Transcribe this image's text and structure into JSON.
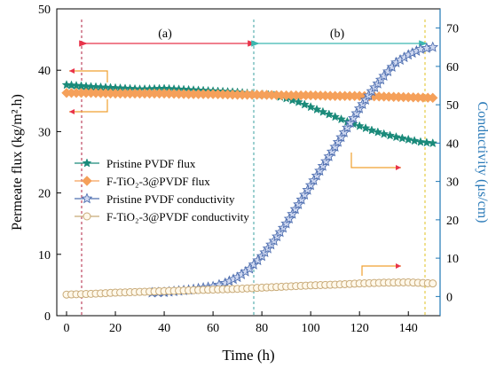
{
  "chart_data": {
    "type": "line",
    "xlabel": "Time (h)",
    "ylabel_left": "Permeate flux (kg/m².h)",
    "ylabel_right": "Conductivity (μs/cm)",
    "xlim": [
      -4,
      153
    ],
    "ylim_left": [
      0,
      50
    ],
    "ylim_right": [
      -5,
      75
    ],
    "xticks": [
      "0",
      "20",
      "40",
      "60",
      "80",
      "100",
      "120",
      "140"
    ],
    "yticks_left": [
      "0",
      "10",
      "20",
      "30",
      "40",
      "50"
    ],
    "yticks_right": [
      "0",
      "10",
      "20",
      "30",
      "40",
      "50",
      "60",
      "70"
    ],
    "colors": {
      "left_axis": "#000000",
      "right_axis": "#1f77b4",
      "right_axis_label": "#2a7ab8",
      "red_arrow": "#e8334a",
      "teal_arrow": "#3cb8b0",
      "orange_arrow": "#f0a030"
    },
    "phase_labels": [
      "(a)",
      "(b)"
    ],
    "series": [
      {
        "name": "Pristine PVDF flux",
        "axis": "left",
        "color": "#1a8a7a",
        "marker": "star",
        "x": [
          0,
          10,
          20,
          30,
          40,
          50,
          60,
          70,
          78,
          85,
          90,
          95,
          100,
          105,
          110,
          115,
          120,
          125,
          130,
          135,
          140,
          145,
          150
        ],
        "y": [
          37.6,
          37.3,
          37.1,
          36.9,
          37.0,
          36.8,
          36.6,
          36.4,
          36.1,
          35.9,
          35.4,
          34.8,
          34.0,
          33.2,
          32.4,
          31.6,
          30.9,
          30.2,
          29.6,
          29.1,
          28.7,
          28.3,
          28.1
        ]
      },
      {
        "name": "F-TiO₂-3@PVDF flux",
        "axis": "left",
        "color": "#f5a05a",
        "marker": "diamond",
        "x": [
          0,
          10,
          20,
          30,
          40,
          50,
          60,
          70,
          80,
          90,
          100,
          110,
          120,
          130,
          140,
          150
        ],
        "y": [
          36.3,
          36.3,
          36.2,
          36.2,
          36.2,
          36.1,
          36.1,
          36.0,
          36.0,
          35.9,
          35.9,
          35.8,
          35.8,
          35.7,
          35.6,
          35.5
        ]
      },
      {
        "name": "Pristine PVDF conductivity",
        "axis": "right",
        "color": "#4f6fb0",
        "marker": "star-open",
        "x": [
          35,
          40,
          50,
          60,
          65,
          70,
          75,
          80,
          85,
          90,
          95,
          100,
          105,
          110,
          115,
          120,
          125,
          130,
          135,
          140,
          145,
          150
        ],
        "y": [
          1.0,
          1.1,
          1.7,
          2.6,
          3.5,
          5.0,
          7.2,
          10.5,
          14.5,
          19.0,
          24.0,
          29.0,
          34.0,
          39.0,
          44.0,
          49.0,
          53.5,
          57.5,
          61.0,
          63.0,
          64.5,
          65.0
        ]
      },
      {
        "name": "F-TiO₂-3@PVDF conductivity",
        "axis": "right",
        "color": "#c8aa78",
        "marker": "circle-open",
        "x": [
          0,
          10,
          20,
          30,
          40,
          50,
          60,
          70,
          80,
          90,
          100,
          110,
          120,
          130,
          140,
          150
        ],
        "y": [
          0.5,
          0.7,
          1.0,
          1.2,
          1.4,
          1.6,
          1.8,
          2.0,
          2.3,
          2.6,
          2.9,
          3.1,
          3.4,
          3.6,
          3.7,
          3.4
        ]
      }
    ]
  }
}
